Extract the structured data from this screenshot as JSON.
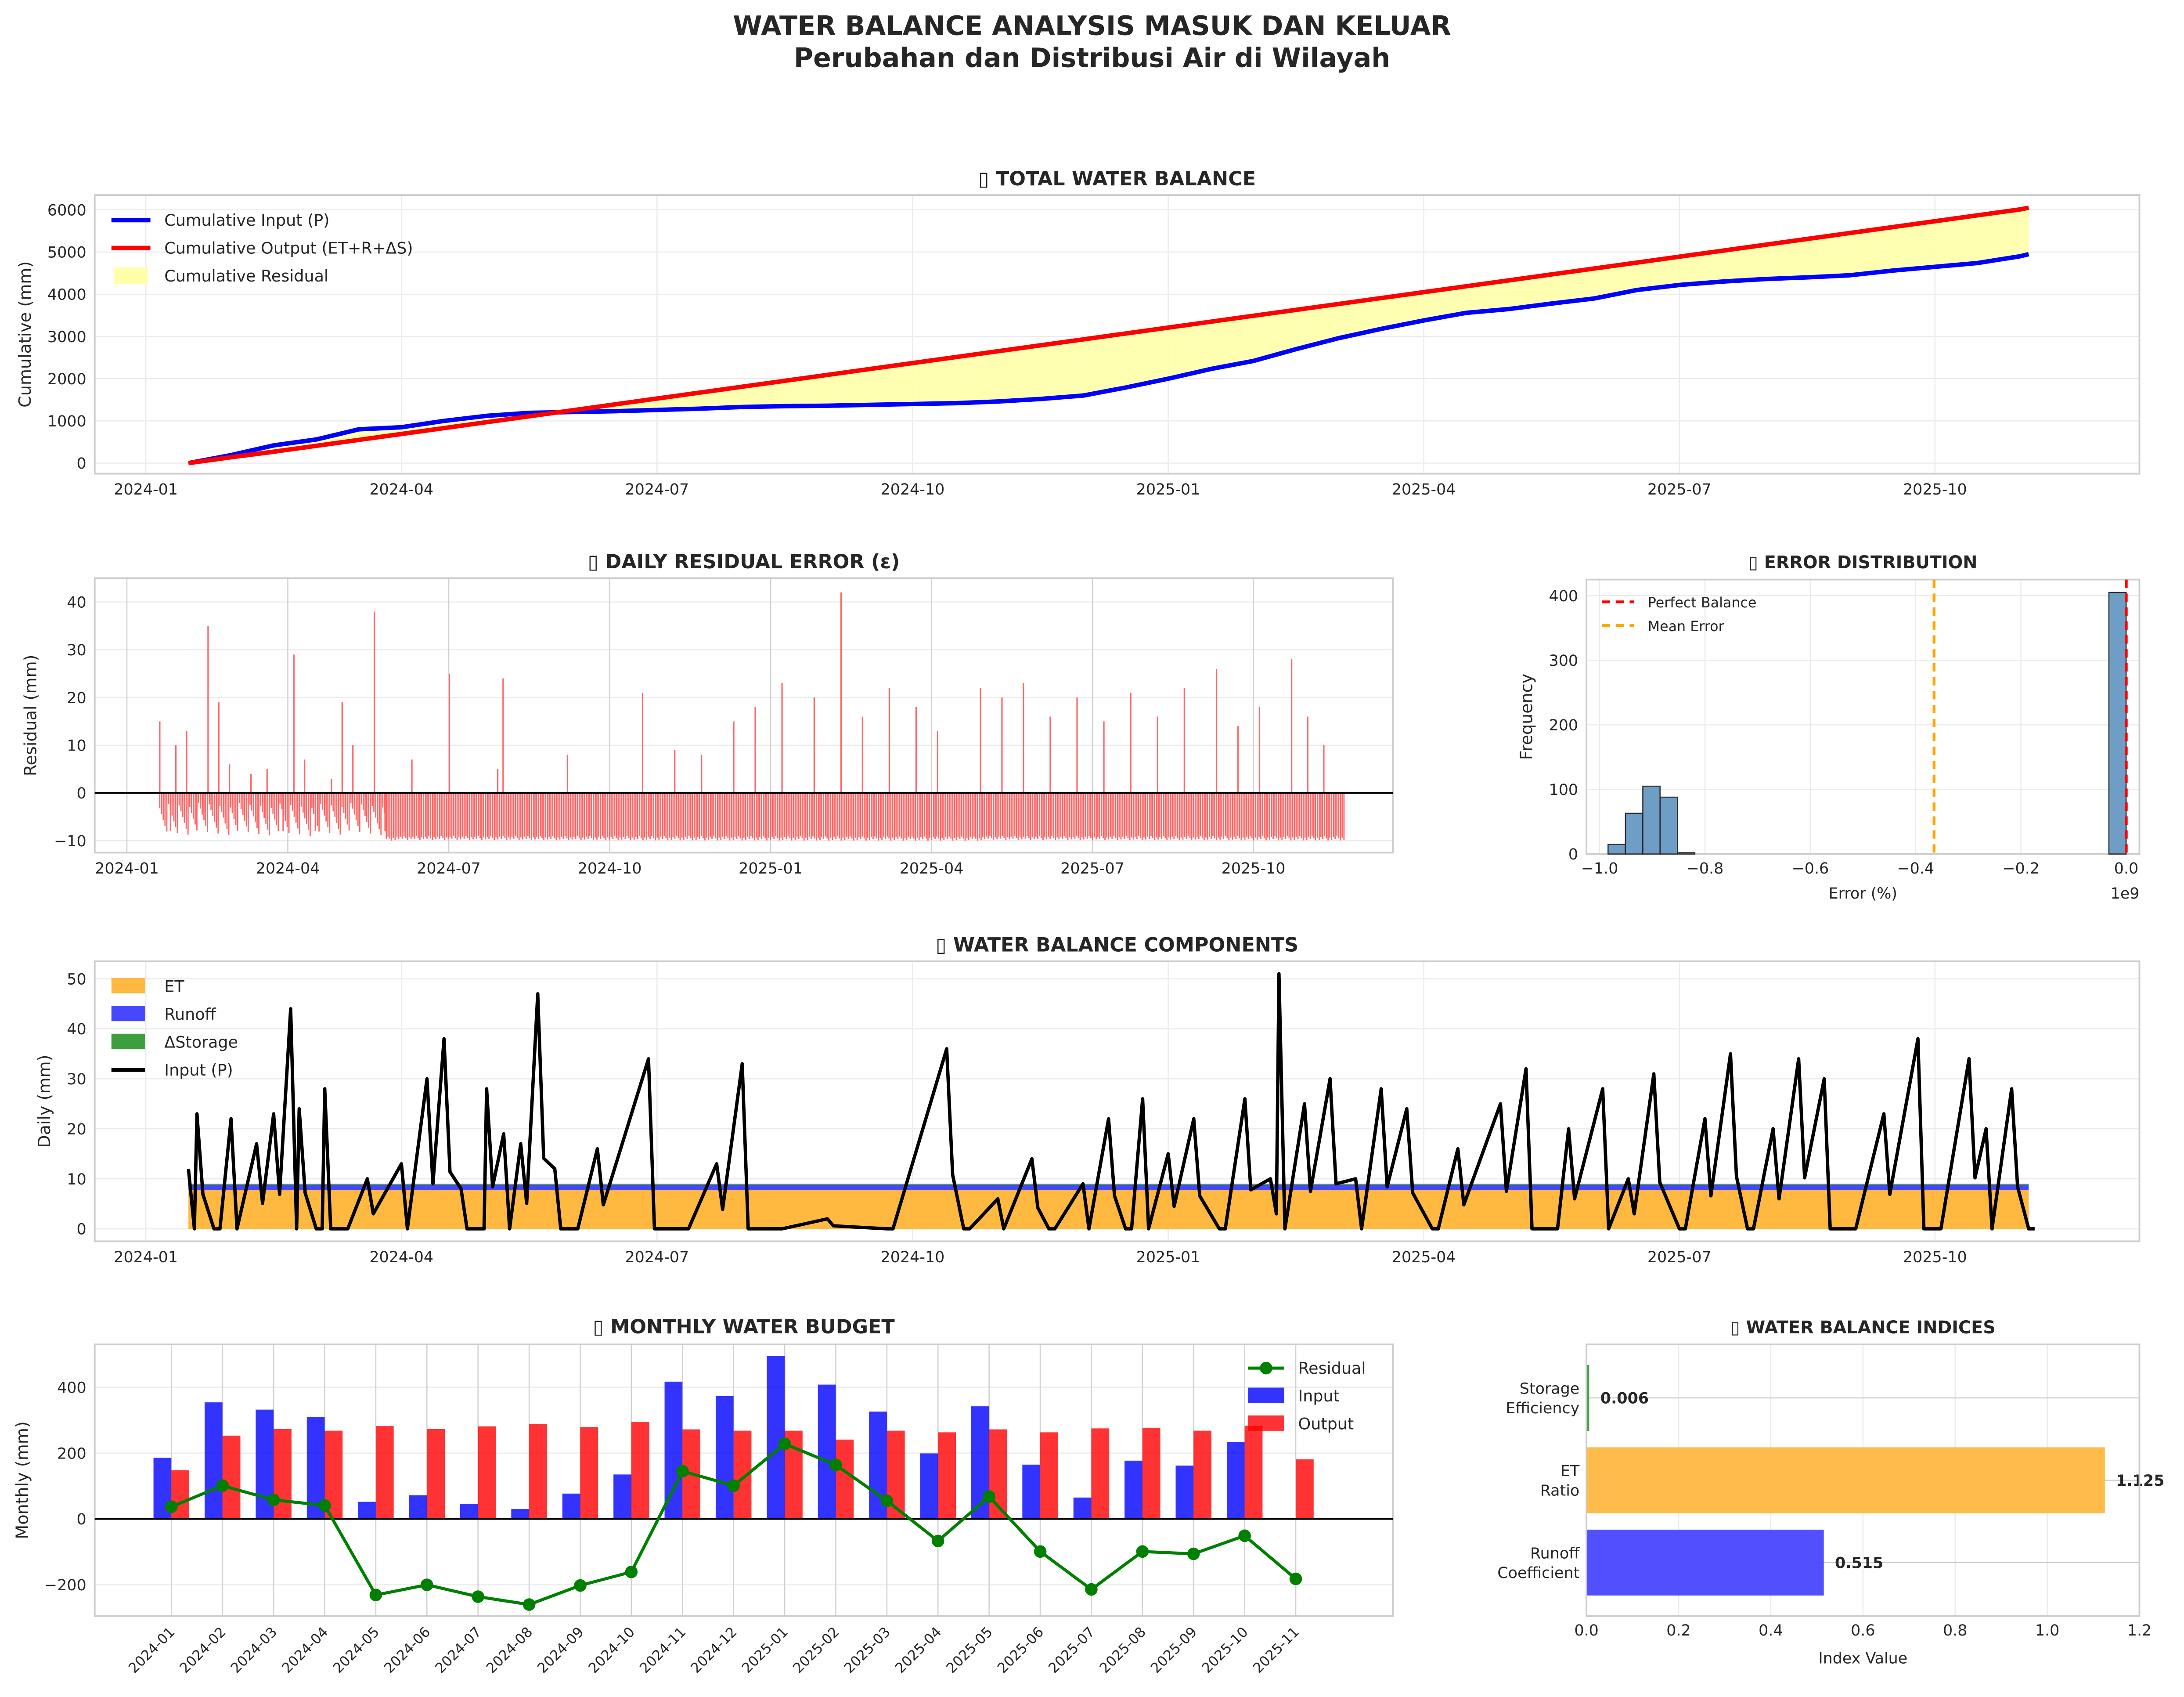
{
  "figure": {
    "title": "WATER BALANCE ANALYSIS MASUK DAN KELUAR",
    "subtitle": "Perubahan dan Distribusi Air di Wilayah"
  },
  "colors": {
    "input": "#0000ff",
    "output": "#ff0000",
    "residual_fill": "#ffffaa",
    "residual_bar": "#ff6666",
    "hist": "#6e9dc6",
    "et": "#ffb840",
    "runoff": "#4747ff",
    "storage": "#3c9e3c",
    "monthly_residual": "#008000",
    "mean_error": "#ffa500"
  },
  "chart_data": [
    {
      "id": "total",
      "type": "line",
      "title": "▯ TOTAL WATER BALANCE",
      "ylabel": "Cumulative (mm)",
      "xlabel": "",
      "ylim": [
        -250,
        6350
      ],
      "yticks": [
        0,
        1000,
        2000,
        3000,
        4000,
        5000,
        6000
      ],
      "xticks": [
        "2024-01",
        "2024-04",
        "2024-07",
        "2024-10",
        "2025-01",
        "2025-04",
        "2025-07",
        "2025-10"
      ],
      "x_range_months": [
        -0.6,
        23.4
      ],
      "legend": {
        "position": "top-left",
        "entries": [
          "Cumulative Input (P)",
          "Cumulative Output (ET+R+ΔS)",
          "Cumulative Residual"
        ]
      },
      "x_months": [
        0.5,
        1,
        1.5,
        2,
        2.5,
        3,
        3.5,
        4,
        4.5,
        5,
        5.5,
        6,
        6.5,
        7,
        7.5,
        8,
        8.5,
        9,
        9.5,
        10,
        10.5,
        11,
        11.5,
        12,
        12.5,
        13,
        13.5,
        14,
        14.5,
        15,
        15.5,
        16,
        16.5,
        17,
        17.5,
        18,
        18.5,
        19,
        19.5,
        20,
        20.5,
        21,
        21.5,
        22,
        22.1
      ],
      "series": [
        {
          "name": "Cumulative Input (P)",
          "values": [
            0,
            190,
            420,
            560,
            800,
            850,
            1000,
            1120,
            1190,
            1210,
            1230,
            1260,
            1290,
            1330,
            1350,
            1360,
            1380,
            1400,
            1420,
            1460,
            1520,
            1600,
            1790,
            2000,
            2230,
            2420,
            2700,
            2960,
            3180,
            3380,
            3560,
            3650,
            3780,
            3900,
            4100,
            4220,
            4300,
            4360,
            4400,
            4450,
            4560,
            4650,
            4740,
            4900,
            4950
          ]
        },
        {
          "name": "Cumulative Output (ET+R+ΔS)",
          "values": [
            0,
            140,
            270,
            410,
            550,
            690,
            830,
            970,
            1110,
            1250,
            1390,
            1530,
            1670,
            1810,
            1950,
            2090,
            2230,
            2370,
            2510,
            2650,
            2790,
            2930,
            3070,
            3210,
            3350,
            3490,
            3630,
            3770,
            3910,
            4050,
            4190,
            4330,
            4470,
            4610,
            4750,
            4890,
            5030,
            5170,
            5310,
            5450,
            5590,
            5730,
            5870,
            6010,
            6050
          ]
        }
      ]
    },
    {
      "id": "residual",
      "type": "bar",
      "title": "▯ DAILY RESIDUAL ERROR (ε)",
      "ylabel": "Residual (mm)",
      "ylim": [
        -12.5,
        45
      ],
      "yticks": [
        -10,
        0,
        10,
        20,
        30,
        40
      ],
      "xticks": [
        "2024-01",
        "2024-04",
        "2024-07",
        "2024-10",
        "2025-01",
        "2025-04",
        "2025-07",
        "2025-10"
      ],
      "x_range_months": [
        -0.6,
        23.6
      ],
      "spikes": [
        [
          0.6,
          15
        ],
        [
          0.8,
          -8
        ],
        [
          0.9,
          10
        ],
        [
          1.1,
          13
        ],
        [
          1.5,
          35
        ],
        [
          1.7,
          19
        ],
        [
          1.9,
          6
        ],
        [
          2.3,
          4
        ],
        [
          2.6,
          5
        ],
        [
          2.9,
          -8
        ],
        [
          3.1,
          29
        ],
        [
          3.3,
          7
        ],
        [
          3.5,
          -8
        ],
        [
          3.8,
          3
        ],
        [
          4.0,
          19
        ],
        [
          4.2,
          10
        ],
        [
          4.6,
          38
        ],
        [
          4.8,
          -8
        ],
        [
          5.3,
          7
        ],
        [
          6.0,
          25
        ],
        [
          6.9,
          5
        ],
        [
          7.0,
          24
        ],
        [
          8.2,
          8
        ],
        [
          9.6,
          21
        ],
        [
          10.2,
          9
        ],
        [
          10.7,
          8
        ],
        [
          11.3,
          15
        ],
        [
          11.7,
          18
        ],
        [
          12.2,
          23
        ],
        [
          12.8,
          20
        ],
        [
          13.3,
          42
        ],
        [
          13.7,
          16
        ],
        [
          14.2,
          22
        ],
        [
          14.7,
          18
        ],
        [
          15.1,
          13
        ],
        [
          15.9,
          22
        ],
        [
          16.3,
          20
        ],
        [
          16.7,
          23
        ],
        [
          17.2,
          16
        ],
        [
          17.7,
          20
        ],
        [
          18.2,
          15
        ],
        [
          18.7,
          21
        ],
        [
          19.2,
          16
        ],
        [
          19.7,
          22
        ],
        [
          20.3,
          26
        ],
        [
          20.7,
          14
        ],
        [
          21.1,
          18
        ],
        [
          21.7,
          28
        ],
        [
          22.0,
          16
        ],
        [
          22.3,
          10
        ]
      ],
      "negative_level": -9
    },
    {
      "id": "hist",
      "type": "bar",
      "title": "▯ ERROR DISTRIBUTION",
      "xlabel": "Error (%)",
      "ylabel": "Frequency",
      "x_offset_label": "1e9",
      "xlim": [
        -1.025,
        0.025
      ],
      "ylim": [
        0,
        425
      ],
      "xticks": [
        -1.0,
        -0.8,
        -0.6,
        -0.4,
        -0.2,
        0.0
      ],
      "xtick_labels": [
        "−1.0",
        "−0.8",
        "−0.6",
        "−0.4",
        "−0.2",
        "0.0"
      ],
      "yticks": [
        0,
        100,
        200,
        300,
        400
      ],
      "bin_width": 0.0327,
      "bins": [
        [
          -0.984,
          15
        ],
        [
          -0.951,
          63
        ],
        [
          -0.918,
          105
        ],
        [
          -0.885,
          88
        ],
        [
          -0.852,
          2
        ],
        [
          -0.033,
          405
        ]
      ],
      "mean_error": -0.365,
      "perfect_balance": 0,
      "legend": {
        "position": "top-left",
        "entries": [
          "Perfect Balance",
          "Mean Error"
        ]
      }
    },
    {
      "id": "components",
      "type": "area",
      "title": "▯ WATER BALANCE COMPONENTS",
      "ylabel": "Daily (mm)",
      "ylim": [
        -2.5,
        53.5
      ],
      "yticks": [
        0,
        10,
        20,
        30,
        40,
        50
      ],
      "xticks": [
        "2024-01",
        "2024-04",
        "2024-07",
        "2024-10",
        "2025-01",
        "2025-04",
        "2025-07",
        "2025-10"
      ],
      "x_range_months": [
        -0.6,
        23.4
      ],
      "legend": {
        "position": "top-left",
        "entries": [
          "ET",
          "Runoff",
          "ΔStorage",
          "Input (P)"
        ]
      },
      "et_level": 7.8,
      "runoff_level": 8.8,
      "storage_level": 9.0,
      "input_peaks": [
        [
          0.5,
          12
        ],
        [
          0.6,
          23
        ],
        [
          0.8,
          0
        ],
        [
          1.0,
          22
        ],
        [
          1.3,
          17
        ],
        [
          1.5,
          23
        ],
        [
          1.7,
          44
        ],
        [
          1.8,
          24
        ],
        [
          2.0,
          0
        ],
        [
          2.1,
          28
        ],
        [
          2.3,
          0
        ],
        [
          2.6,
          10
        ],
        [
          3.0,
          13
        ],
        [
          3.3,
          30
        ],
        [
          3.5,
          38
        ],
        [
          3.7,
          8
        ],
        [
          3.9,
          0
        ],
        [
          4.0,
          28
        ],
        [
          4.2,
          19
        ],
        [
          4.4,
          17
        ],
        [
          4.6,
          47
        ],
        [
          4.8,
          12
        ],
        [
          5.0,
          0
        ],
        [
          5.3,
          16
        ],
        [
          5.9,
          34
        ],
        [
          6.3,
          0
        ],
        [
          6.7,
          13
        ],
        [
          7.0,
          33
        ],
        [
          7.4,
          0
        ],
        [
          8.0,
          2
        ],
        [
          8.7,
          0
        ],
        [
          9.4,
          36
        ],
        [
          9.6,
          0
        ],
        [
          10.0,
          6
        ],
        [
          10.4,
          14
        ],
        [
          10.6,
          0
        ],
        [
          11.0,
          9
        ],
        [
          11.3,
          22
        ],
        [
          11.5,
          0
        ],
        [
          11.7,
          26
        ],
        [
          12.0,
          15
        ],
        [
          12.3,
          22
        ],
        [
          12.6,
          0
        ],
        [
          12.9,
          26
        ],
        [
          13.2,
          10
        ],
        [
          13.3,
          51
        ],
        [
          13.6,
          25
        ],
        [
          13.9,
          30
        ],
        [
          14.2,
          10
        ],
        [
          14.5,
          28
        ],
        [
          14.8,
          24
        ],
        [
          15.1,
          0
        ],
        [
          15.4,
          16
        ],
        [
          15.9,
          25
        ],
        [
          16.2,
          32
        ],
        [
          16.5,
          0
        ],
        [
          16.7,
          20
        ],
        [
          17.1,
          28
        ],
        [
          17.4,
          10
        ],
        [
          17.7,
          31
        ],
        [
          18.0,
          0
        ],
        [
          18.3,
          22
        ],
        [
          18.6,
          35
        ],
        [
          18.8,
          0
        ],
        [
          19.1,
          20
        ],
        [
          19.4,
          34
        ],
        [
          19.7,
          30
        ],
        [
          20.0,
          0
        ],
        [
          20.4,
          23
        ],
        [
          20.8,
          38
        ],
        [
          21.0,
          0
        ],
        [
          21.4,
          34
        ],
        [
          21.6,
          20
        ],
        [
          21.9,
          28
        ],
        [
          22.1,
          0
        ]
      ]
    },
    {
      "id": "monthly",
      "type": "bar",
      "title": "▯ MONTHLY WATER BUDGET",
      "ylabel": "Monthly (mm)",
      "ylim": [
        -295,
        530
      ],
      "yticks": [
        -200,
        0,
        200,
        400
      ],
      "categories": [
        "2024-01",
        "2024-02",
        "2024-03",
        "2024-04",
        "2024-05",
        "2024-06",
        "2024-07",
        "2024-08",
        "2024-09",
        "2024-10",
        "2024-11",
        "2024-12",
        "2025-01",
        "2025-02",
        "2025-03",
        "2025-04",
        "2025-05",
        "2025-06",
        "2025-07",
        "2025-08",
        "2025-09",
        "2025-10",
        "2025-11"
      ],
      "legend": {
        "position": "top-right",
        "entries": [
          "Residual",
          "Input",
          "Output"
        ]
      },
      "series": [
        {
          "name": "Input",
          "values": [
            186,
            354,
            332,
            310,
            52,
            72,
            46,
            30,
            77,
            135,
            417,
            373,
            495,
            408,
            326,
            199,
            342,
            165,
            65,
            177,
            162,
            233,
            0
          ]
        },
        {
          "name": "Output",
          "values": [
            148,
            253,
            273,
            268,
            282,
            273,
            281,
            288,
            279,
            294,
            272,
            268,
            268,
            241,
            268,
            263,
            272,
            263,
            275,
            277,
            268,
            283,
            181
          ]
        },
        {
          "name": "Residual",
          "values": [
            37,
            101,
            58,
            41,
            -231,
            -200,
            -236,
            -260,
            -202,
            -161,
            145,
            101,
            228,
            164,
            55,
            -67,
            68,
            -99,
            -214,
            -99,
            -106,
            -51,
            -182
          ]
        }
      ]
    },
    {
      "id": "indices",
      "type": "bar",
      "title": "▯ WATER BALANCE INDICES",
      "xlabel": "Index Value",
      "xlim": [
        0,
        1.2
      ],
      "xticks": [
        0.0,
        0.2,
        0.4,
        0.6,
        0.8,
        1.0,
        1.2
      ],
      "xtick_labels": [
        "0.0",
        "0.2",
        "0.4",
        "0.6",
        "0.8",
        "1.0",
        "1.2"
      ],
      "categories": [
        [
          "Runoff",
          "Coefficient"
        ],
        [
          "ET",
          "Ratio"
        ],
        [
          "Storage",
          "Efficiency"
        ]
      ],
      "values": [
        0.515,
        1.125,
        0.006
      ],
      "value_labels": [
        "0.515",
        "1.125",
        "0.006"
      ]
    }
  ]
}
